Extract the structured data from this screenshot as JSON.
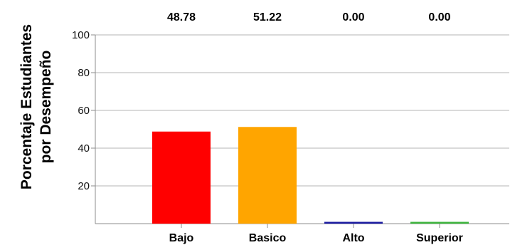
{
  "chart_data": {
    "type": "bar",
    "categories": [
      "Bajo",
      "Basico",
      "Alto",
      "Superior"
    ],
    "values": [
      48.78,
      51.22,
      0.0,
      0.0
    ],
    "data_labels": [
      "48.78",
      "51.22",
      "0.00",
      "0.00"
    ],
    "colors": [
      "#ff0000",
      "#ffa500",
      "#1a1aa0",
      "#3cb43c"
    ],
    "title": "",
    "xlabel": "",
    "ylabel_lines": [
      "Porcentaje Estudiantes",
      "por Desempeño"
    ],
    "ylim": [
      0,
      100
    ],
    "yticks": [
      20,
      40,
      60,
      80,
      100
    ],
    "ytick_labels": [
      "20",
      "40",
      "60",
      "80",
      "100"
    ],
    "grid": true,
    "legend": "none"
  }
}
